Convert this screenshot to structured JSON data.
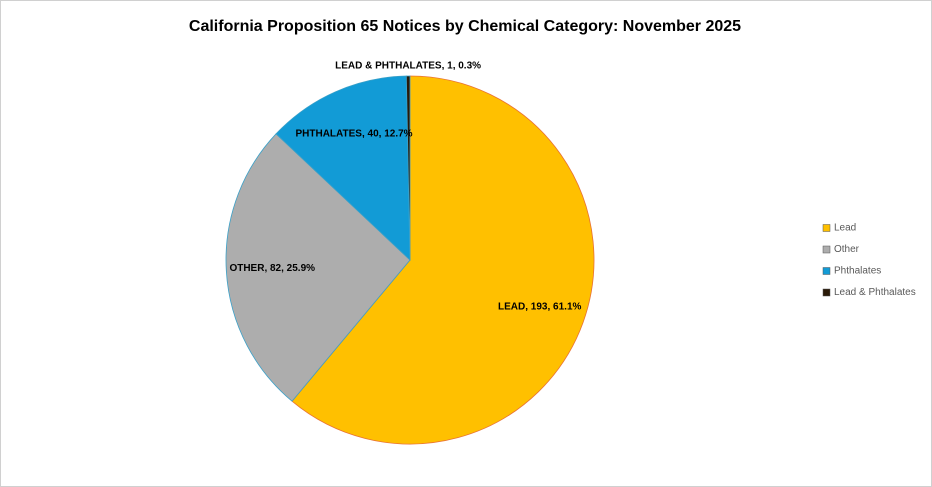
{
  "chart_data": {
    "type": "pie",
    "title": "California Proposition 65 Notices by Chemical Category: November 2025",
    "categories": [
      "Lead",
      "Other",
      "Phthalates",
      "Lead & Phthalates"
    ],
    "values": [
      193,
      82,
      40,
      1
    ],
    "value_labels": [
      "LEAD, 193, 61.1%",
      "OTHER, 82, 25.9%",
      "PHTHALATES, 40, 12.7%",
      "LEAD & PHTHALATES, 1, 0.3%"
    ],
    "colors": [
      "#FFC000",
      "#ADADAD",
      "#129BD6",
      "#2A1A08"
    ],
    "legend": "right"
  }
}
